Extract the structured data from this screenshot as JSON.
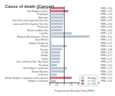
{
  "chart_data": {
    "type": "bar",
    "orientation": "horizontal",
    "title": "Cause of death (Cancer)",
    "xlabel": "Proportionate Mortality Ratio (PMR)",
    "categories": [
      "All Selected",
      "Non-Hodgkin Lympho.",
      "Esophageal",
      "Melanoma",
      "Other Sites and Unspecified Sites Nos",
      "Larynx and Other Digestive Sites Nos",
      "Peritoneum",
      "Rectum and Anus Nos",
      "Lung Nos",
      "Malignant Mesothelioma / Pleural",
      "Nasal Rhinitis",
      "Malignant Endocrine",
      "Blood S",
      "Prostate",
      "Oral No",
      "Bladder",
      "Kidney",
      "Brain and Nerve Nos / Bg's Spine",
      "Thy Gland",
      "Non-Hodgkin's Lymphoma",
      "Multiple Myeloma",
      "Leukaemia",
      "All Non-Hodgkin's Lymphoma and Leukaemia",
      "Hodgkin's Leukaemia"
    ],
    "values": [
      1.0,
      1.31,
      1.0,
      0.96,
      0.95,
      0.94,
      0.9,
      0.9,
      1.55,
      2.8,
      0.11,
      0.15,
      1.2,
      0.88,
      0.75,
      0.75,
      0.75,
      0.72,
      0.52,
      1.22,
      1.05,
      0.52,
      1.55,
      0.44
    ],
    "value_labels": [
      "PMR = 1.00",
      "PMR = 1.31",
      "PMR = 1.00",
      "PMR = 0.96",
      "PMR = 0.95",
      "PMR = 0.94",
      "PMR = 0.90",
      "PMR = 0.90",
      "PMR = 1.55",
      "PMR = 2.80",
      "PMR = 0.11",
      "PMR = 0.15",
      "PMR = 1.20",
      "PMR = 0.88",
      "PMR = 0.75",
      "PMR = 0.75",
      "PMR = 0.75",
      "PMR = 0.72",
      "PMR = 0.52",
      "PMR = 1.22",
      "PMR = 1.05",
      "PMR = 0.52",
      "PMR = 1.55",
      "PMR = 0.44"
    ],
    "data_labels": true,
    "colors": [
      "#c87880",
      "#c07888",
      "#b8c4d0",
      "#b8c4d0",
      "#b8c4d0",
      "#b8c4d0",
      "#b8c4d0",
      "#b8c4d0",
      "#b8c4d0",
      "#b8c4d0",
      "#b8c4d0",
      "#b8c4d0",
      "#b8c4d0",
      "#b8c4d0",
      "#b8c4d0",
      "#b8c4d0",
      "#b8c4d0",
      "#b8c4d0",
      "#b8c4d0",
      "#b8c4d0",
      "#b8c4d0",
      "#b8c4d0",
      "#c87880",
      "#b8c4d0"
    ],
    "xlim": [
      0,
      3.5
    ],
    "xticks": [
      0,
      0.5,
      1,
      1.5,
      2,
      2.5,
      3
    ],
    "vline": 1.0,
    "legend": "lower right",
    "legend_items": [
      {
        "name": "Both Avg",
        "color": "#b8c4d0"
      },
      {
        "name": "p < 0.05",
        "color": "#8898b8"
      },
      {
        "name": "p < 0.001",
        "color": "#c87880"
      }
    ],
    "grid": false
  }
}
